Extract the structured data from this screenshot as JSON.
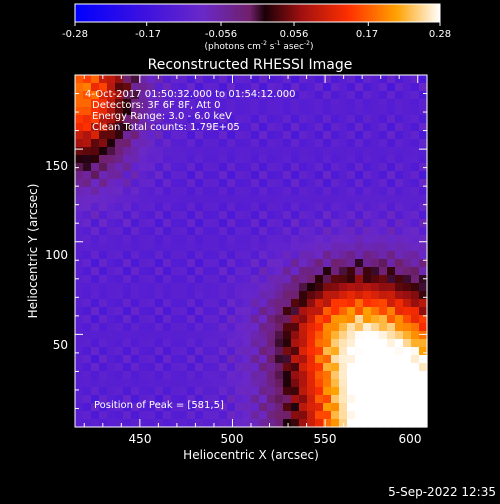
{
  "colorbar": {
    "ticks": [
      "-0.28",
      "-0.17",
      "-0.056",
      "0.056",
      "0.17",
      "0.28"
    ],
    "unit_main": "(photons cm",
    "unit_sup1": "-2",
    "unit_mid": " s",
    "unit_sup2": "-1",
    "unit_end": " asec",
    "unit_sup3": "-2",
    "unit_close": ")"
  },
  "plot": {
    "title": "Reconstructed RHESSI Image",
    "xlabel": "Heliocentric X (arcsec)",
    "ylabel": "Heliocentric Y (arcsec)",
    "xticks": [
      "450",
      "500",
      "550",
      "600"
    ],
    "yticks": [
      "50",
      "100",
      "150"
    ]
  },
  "annotations": {
    "time_range": " 4-Oct-2017 01:50:32.000 to 01:54:12.000",
    "detectors": "Detectors: 3F 6F 8F, Att 0",
    "energy": "Energy Range: 3.0 - 6.0 keV",
    "clean": "Clean    Total counts: 1.79E+05",
    "peak": "Position of Peak = [581,5]"
  },
  "footer": {
    "date": "5-Sep-2022 12:35"
  },
  "chart_data": {
    "type": "heatmap",
    "title": "Reconstructed RHESSI Image",
    "xlabel": "Heliocentric X (arcsec)",
    "ylabel": "Heliocentric Y (arcsec)",
    "xlim": [
      415,
      605
    ],
    "ylim": [
      0,
      190
    ],
    "xticks": [
      450,
      500,
      550,
      600
    ],
    "yticks": [
      50,
      100,
      150
    ],
    "colorbar_range": [
      -0.28,
      0.28
    ],
    "colorbar_ticks": [
      -0.28,
      -0.17,
      -0.056,
      0.056,
      0.17,
      0.28
    ],
    "colorbar_unit": "photons cm^-2 s^-1 asec^-2",
    "peak_position": [
      581,
      5
    ],
    "features": [
      {
        "region": "upper-left corner",
        "x": 425,
        "y": 172,
        "level": 0.16
      },
      {
        "region": "lower-right source",
        "x": 581,
        "y": 5,
        "level": 0.28
      },
      {
        "region": "central field",
        "x": 510,
        "y": 110,
        "level": -0.1
      }
    ]
  }
}
